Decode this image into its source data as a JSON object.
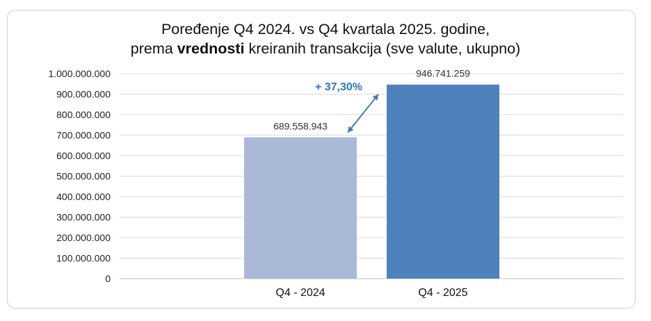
{
  "chart_data": {
    "type": "bar",
    "title_line1": "Poređenje Q4 2024. vs Q4 kvartala 2025. godine,",
    "title_line2_pre": "prema ",
    "title_line2_bold": "vrednosti",
    "title_line2_post": " kreiranih transakcija (sve valute, ukupno)",
    "categories": [
      "Q4 - 2024",
      "Q4 - 2025"
    ],
    "values": [
      689558943,
      946741259
    ],
    "value_labels": [
      "689.558.943",
      "946.741.259"
    ],
    "colors": [
      "#aab9d8",
      "#4f81bd"
    ],
    "ylim": [
      0,
      1000000000
    ],
    "ytick_labels": [
      "0",
      "100.000.000",
      "200.000.000",
      "300.000.000",
      "400.000.000",
      "500.000.000",
      "600.000.000",
      "700.000.000",
      "800.000.000",
      "900.000.000",
      "1.000.000.000"
    ],
    "grid": true,
    "annotation": {
      "text": "+ 37,30%",
      "color": "#2e75b6"
    },
    "arrow_color": "#4a7ab5"
  }
}
